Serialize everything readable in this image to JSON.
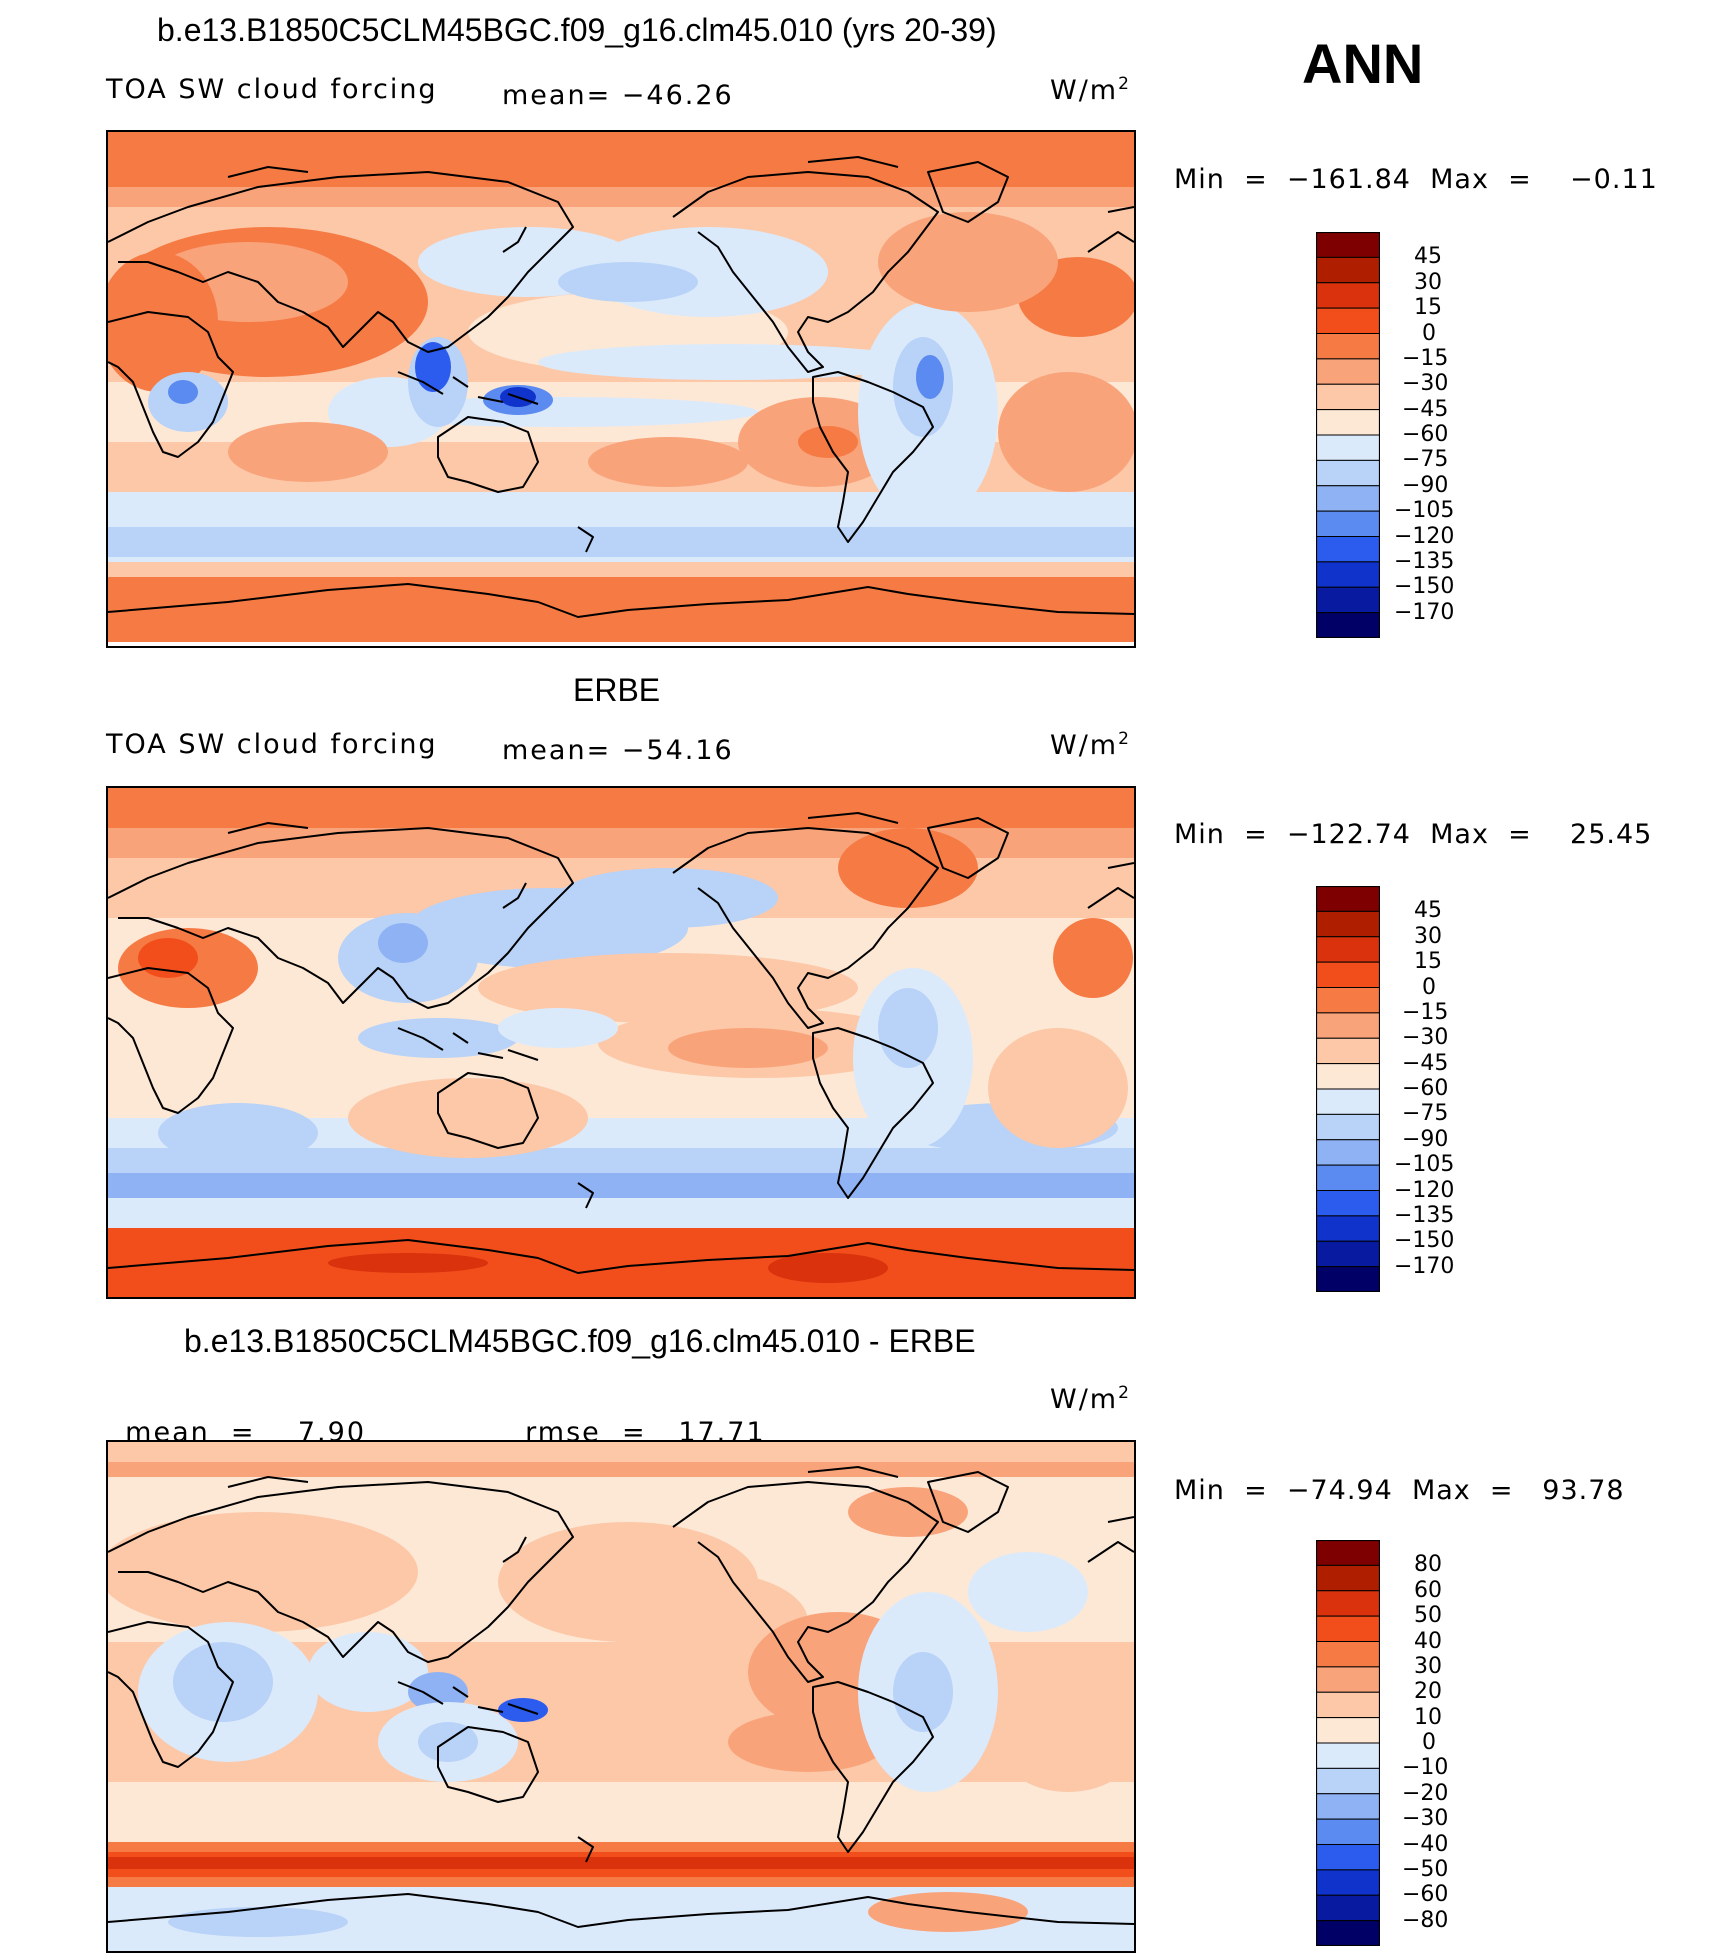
{
  "header": {
    "case_title": "b.e13.B1850C5CLM45BGC.f09_g16.clm45.010 (yrs 20-39)",
    "season": "ANN"
  },
  "colors": {
    "ocean_band_polar": "#f67a44",
    "warm_light": "#fcd6bd",
    "cool_light": "#d3e6fb",
    "coast": "#000000"
  },
  "chart_data": [
    {
      "type": "heatmap",
      "title": "b.e13.B1850C5CLM45BGC.f09_g16.clm45.010 (yrs 20-39)",
      "variable": "TOA SW cloud forcing",
      "stat_left": "mean=",
      "stat_left_value": "−46.26",
      "units_base": "W/m",
      "units_exp": "2",
      "min_max_label": "Min  =  −161.84  Max  =    −0.11",
      "min": -161.84,
      "max": -0.11,
      "mean": -46.26,
      "levels": [
        "45",
        "30",
        "15",
        "0",
        "−15",
        "−30",
        "−45",
        "−60",
        "−75",
        "−90",
        "−105",
        "−120",
        "−135",
        "−150",
        "−170"
      ],
      "colorbar": [
        "#7f0000",
        "#b01e00",
        "#d9320c",
        "#f24e1c",
        "#f67a44",
        "#f9a37a",
        "#fcc8a8",
        "#fde8d6",
        "#dbeafb",
        "#b8d2f8",
        "#8fb2f4",
        "#5b8af0",
        "#2c5cee",
        "#1033cc",
        "#081aa0",
        "#000066"
      ],
      "pattern": "ctl"
    },
    {
      "type": "heatmap",
      "title": "ERBE",
      "variable": "TOA SW cloud forcing",
      "stat_left": "mean=",
      "stat_left_value": "−54.16",
      "units_base": "W/m",
      "units_exp": "2",
      "min_max_label": "Min  =  −122.74  Max  =    25.45",
      "min": -122.74,
      "max": 25.45,
      "mean": -54.16,
      "levels": [
        "45",
        "30",
        "15",
        "0",
        "−15",
        "−30",
        "−45",
        "−60",
        "−75",
        "−90",
        "−105",
        "−120",
        "−135",
        "−150",
        "−170"
      ],
      "colorbar": [
        "#7f0000",
        "#b01e00",
        "#d9320c",
        "#f24e1c",
        "#f67a44",
        "#f9a37a",
        "#fcc8a8",
        "#fde8d6",
        "#dbeafb",
        "#b8d2f8",
        "#8fb2f4",
        "#5b8af0",
        "#2c5cee",
        "#1033cc",
        "#081aa0",
        "#000066"
      ],
      "pattern": "obs"
    },
    {
      "type": "heatmap",
      "title": "b.e13.B1850C5CLM45BGC.f09_g16.clm45.010 - ERBE",
      "variable": "",
      "stat_left": "mean  =",
      "stat_left_value": "7.90",
      "stat_right": "rmse  =",
      "stat_right_value": "17.71",
      "units_base": "W/m",
      "units_exp": "2",
      "min_max_label": "Min  =  −74.94  Max  =   93.78",
      "min": -74.94,
      "max": 93.78,
      "mean": 7.9,
      "rmse": 17.71,
      "levels": [
        "80",
        "60",
        "50",
        "40",
        "30",
        "20",
        "10",
        "0",
        "−10",
        "−20",
        "−30",
        "−40",
        "−50",
        "−60",
        "−80"
      ],
      "colorbar": [
        "#7f0000",
        "#b01e00",
        "#d9320c",
        "#f24e1c",
        "#f67a44",
        "#f9a37a",
        "#fcc8a8",
        "#fde8d6",
        "#dbeafb",
        "#b8d2f8",
        "#8fb2f4",
        "#5b8af0",
        "#2c5cee",
        "#1033cc",
        "#081aa0",
        "#000066"
      ],
      "pattern": "diff"
    }
  ]
}
